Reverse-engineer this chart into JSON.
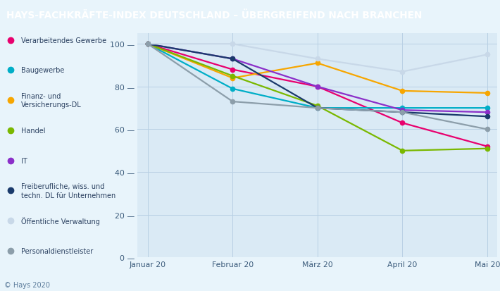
{
  "title": "HAYS-FACHKRÄFTE-INDEX DEUTSCHLAND – ÜBERGREIFEND NACH BRANCHEN",
  "title_bg": "#1b3a78",
  "title_color": "#ffffff",
  "chart_bg": "#daeaf5",
  "legend_bg": "#e8f4fb",
  "x_labels": [
    "Januar 20",
    "Februar 20",
    "März 20",
    "April 20",
    "Mai 20"
  ],
  "series": [
    {
      "label": "Verarbeitendes Gewerbe",
      "label2": null,
      "color": "#e8006e",
      "values": [
        100,
        88,
        80,
        63,
        52
      ]
    },
    {
      "label": "Baugewerbe",
      "label2": null,
      "color": "#00aec7",
      "values": [
        100,
        79,
        70,
        70,
        70
      ]
    },
    {
      "label": "Finanz- und",
      "label2": "Versicherungs-DL",
      "color": "#f7a600",
      "values": [
        100,
        84,
        91,
        78,
        77
      ]
    },
    {
      "label": "Handel",
      "label2": null,
      "color": "#7ab800",
      "values": [
        100,
        85,
        71,
        50,
        51
      ]
    },
    {
      "label": "IT",
      "label2": null,
      "color": "#8b2fc9",
      "values": [
        100,
        93,
        80,
        69,
        68
      ]
    },
    {
      "label": "Freiberufliche, wiss. und",
      "label2": "techn. DL für Unternehmen",
      "color": "#1a3a6b",
      "values": [
        100,
        93,
        70,
        68,
        66
      ]
    },
    {
      "label": "Öffentliche Verwaltung",
      "label2": null,
      "color": "#c8d8e8",
      "values": [
        100,
        100,
        93,
        87,
        95
      ]
    },
    {
      "label": "Personaldienstleister",
      "label2": null,
      "color": "#8c9eaa",
      "values": [
        100,
        73,
        70,
        68,
        60
      ]
    }
  ],
  "ylim": [
    0,
    105
  ],
  "yticks": [
    0,
    20,
    40,
    60,
    80,
    100
  ],
  "footer": "© Hays 2020",
  "grid_color": "#b8d0e4"
}
